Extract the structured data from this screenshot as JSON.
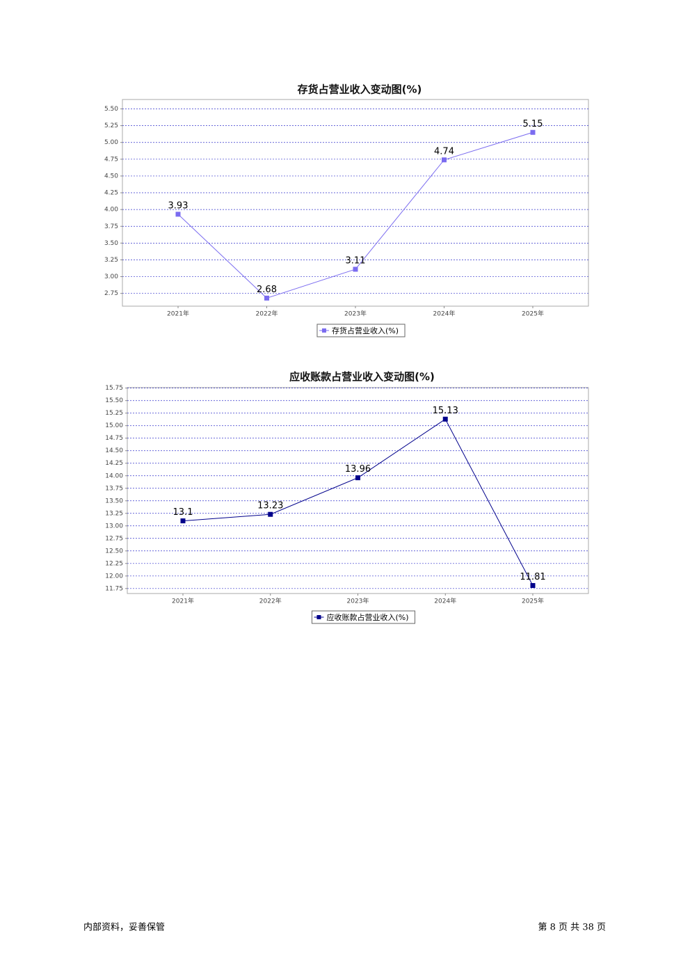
{
  "chart_data": [
    {
      "type": "line",
      "title": "存货占营业收入变动图(%)",
      "categories": [
        "2021年",
        "2022年",
        "2023年",
        "2024年",
        "2025年"
      ],
      "series": [
        {
          "name": "存货占营业收入(%)",
          "color": "#7b6cf0",
          "values": [
            3.93,
            2.68,
            3.11,
            4.74,
            5.15
          ]
        }
      ],
      "ylim": [
        2.56,
        5.64
      ],
      "yticks": [
        2.75,
        {
          "value": 3,
          "label": "3.00"
        },
        3.25,
        {
          "value": 3.5,
          "label": "3.50"
        },
        3.75,
        {
          "value": 4,
          "label": "4.00"
        },
        4.25,
        {
          "value": 4.5,
          "label": "4.50"
        },
        4.75,
        {
          "value": 5,
          "label": "5.00"
        },
        5.25,
        {
          "value": 5.5,
          "label": "5.50"
        }
      ],
      "grid": true
    },
    {
      "type": "line",
      "title": "应收账款占营业收入变动图(%)",
      "categories": [
        "2021年",
        "2022年",
        "2023年",
        "2024年",
        "2025年"
      ],
      "series": [
        {
          "name": "应收账款占营业收入(%)",
          "color": "#00008b",
          "values": [
            13.1,
            13.23,
            13.96,
            15.13,
            11.81
          ]
        }
      ],
      "ylim": [
        11.65,
        15.76
      ],
      "yticks": [
        11.75,
        {
          "value": 12,
          "label": "12.00"
        },
        12.25,
        {
          "value": 12.5,
          "label": "12.50"
        },
        12.75,
        {
          "value": 13,
          "label": "13.00"
        },
        13.25,
        {
          "value": 13.5,
          "label": "13.50"
        },
        13.75,
        {
          "value": 14,
          "label": "14.00"
        },
        14.25,
        {
          "value": 14.5,
          "label": "14.50"
        },
        14.75,
        {
          "value": 15,
          "label": "15.00"
        },
        15.25,
        {
          "value": 15.5,
          "label": "15.50"
        },
        15.75
      ],
      "grid": true
    }
  ],
  "footer": {
    "left": "内部资料，妥善保管",
    "right": "第 8 页 共 38 页"
  }
}
